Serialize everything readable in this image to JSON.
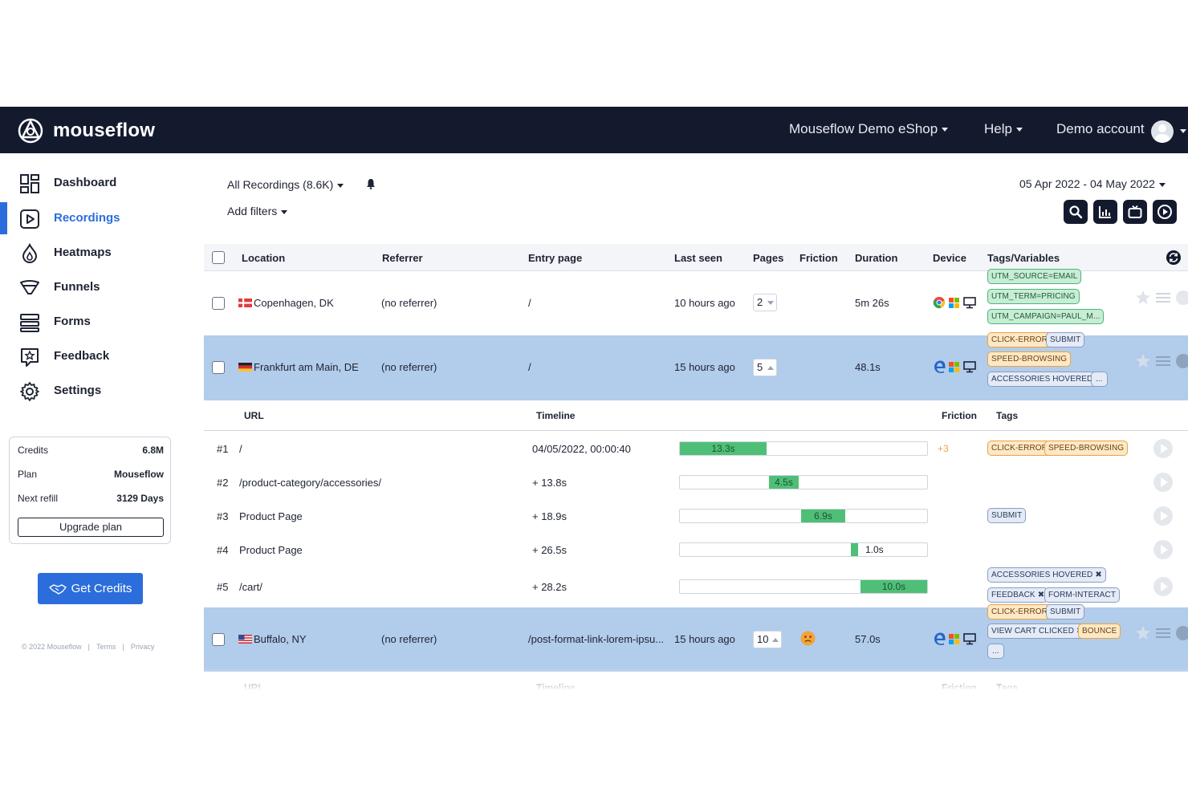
{
  "app": {
    "brand": "mouseflow"
  },
  "topnav": {
    "site": "Mouseflow Demo eShop",
    "help": "Help",
    "account": "Demo account"
  },
  "sidebar": {
    "items": [
      {
        "label": "Dashboard",
        "icon": "dashboard-icon"
      },
      {
        "label": "Recordings",
        "icon": "recordings-icon",
        "active": true
      },
      {
        "label": "Heatmaps",
        "icon": "heatmaps-icon"
      },
      {
        "label": "Funnels",
        "icon": "funnels-icon"
      },
      {
        "label": "Forms",
        "icon": "forms-icon"
      },
      {
        "label": "Feedback",
        "icon": "feedback-icon"
      },
      {
        "label": "Settings",
        "icon": "gear-icon"
      }
    ],
    "credits": {
      "credits_label": "Credits",
      "credits_value": "6.8M",
      "plan_label": "Plan",
      "plan_value": "Mouseflow",
      "refill_label": "Next refill",
      "refill_value": "3129 Days",
      "upgrade": "Upgrade plan"
    },
    "get_credits": "Get Credits",
    "footer": {
      "copyright": "© 2022 Mouseflow",
      "terms": "Terms",
      "privacy": "Privacy"
    }
  },
  "filters": {
    "recordings": "All Recordings (8.6K)",
    "add_filters": "Add filters",
    "date_range": "05 Apr 2022 - 04 May 2022"
  },
  "table": {
    "headers": {
      "location": "Location",
      "referrer": "Referrer",
      "entry": "Entry page",
      "last_seen": "Last seen",
      "pages": "Pages",
      "friction": "Friction",
      "duration": "Duration",
      "device": "Device",
      "tags": "Tags/Variables"
    },
    "rows": [
      {
        "location": "Copenhagen, DK",
        "referrer": "(no referrer)",
        "entry": "/",
        "last_seen": "10 hours ago",
        "pages": "2",
        "duration": "5m 26s",
        "tags": [
          "UTM_SOURCE=EMAIL",
          "UTM_TERM=PRICING",
          "UTM_CAMPAIGN=PAUL_M..."
        ]
      },
      {
        "location": "Frankfurt am Main, DE",
        "referrer": "(no referrer)",
        "entry": "/",
        "last_seen": "15 hours ago",
        "pages": "5",
        "duration": "48.1s",
        "tags": [
          "CLICK-ERROR",
          "SUBMIT",
          "SPEED-BROWSING",
          "ACCESSORIES HOVERED",
          "..."
        ]
      },
      {
        "location": "Buffalo, NY",
        "referrer": "(no referrer)",
        "entry": "/post-format-link-lorem-ipsu...",
        "last_seen": "15 hours ago",
        "pages": "10",
        "duration": "57.0s",
        "tags": [
          "CLICK-ERROR",
          "SUBMIT",
          "VIEW CART CLICKED",
          "BOUNCE",
          "..."
        ]
      }
    ],
    "expanded": {
      "headers": {
        "url": "URL",
        "timeline": "Timeline",
        "friction": "Friction",
        "tags": "Tags"
      },
      "pages": [
        {
          "num": "#1",
          "url": "/",
          "time": "04/05/2022, 00:00:40",
          "duration": "13.3s",
          "start": 0.0,
          "share": 0.35,
          "friction": "+3",
          "tags": [
            "CLICK-ERROR",
            "SPEED-BROWSING"
          ]
        },
        {
          "num": "#2",
          "url": "/product-category/accessories/",
          "time": "+ 13.8s",
          "duration": "4.5s",
          "start": 0.36,
          "share": 0.12,
          "friction": "",
          "tags": []
        },
        {
          "num": "#3",
          "url": "Product Page",
          "time": "+ 18.9s",
          "duration": "6.9s",
          "start": 0.49,
          "share": 0.18,
          "friction": "",
          "tags": [
            "SUBMIT"
          ]
        },
        {
          "num": "#4",
          "url": "Product Page",
          "time": "+ 26.5s",
          "duration": "1.0s",
          "start": 0.69,
          "share": 0.03,
          "friction": "",
          "tags": []
        },
        {
          "num": "#5",
          "url": "/cart/",
          "time": "+ 28.2s",
          "duration": "10.0s",
          "start": 0.73,
          "share": 0.27,
          "friction": "",
          "tags": [
            "ACCESSORIES HOVERED",
            "FEEDBACK",
            "FORM-INTERACT"
          ]
        }
      ]
    },
    "next_headers": {
      "url": "URL",
      "timeline": "Timeline",
      "friction": "Friction",
      "tags": "Tags"
    }
  },
  "colors": {
    "topbar": "#141a2e",
    "accent": "#2b6ddb",
    "row_highlight": "#b2cceb",
    "timeline": "#4fbf78"
  }
}
